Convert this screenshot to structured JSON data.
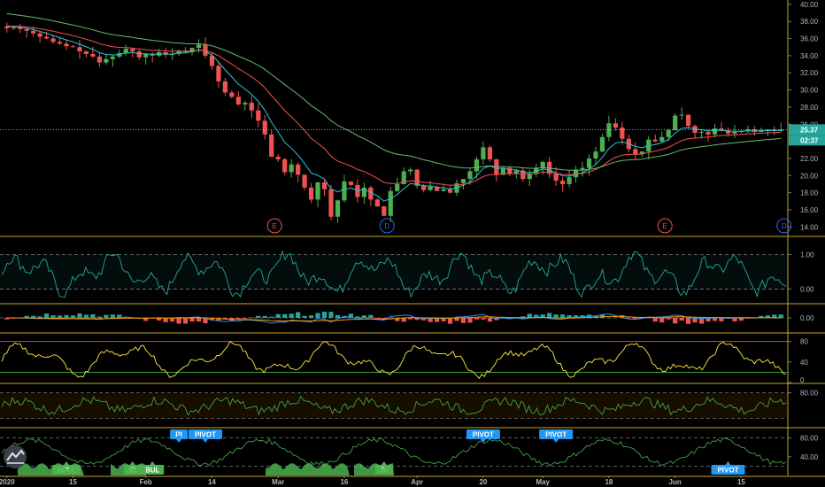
{
  "chart_data": {
    "type": "candlestick",
    "price_axis": {
      "ticks": [
        "40.00",
        "38.00",
        "36.00",
        "34.00",
        "32.00",
        "30.00",
        "28.00",
        "26.00",
        "24.00",
        "22.00",
        "20.00",
        "18.00",
        "16.00",
        "14.00"
      ],
      "range": [
        13,
        40.5
      ]
    },
    "last_price_label": "25.37",
    "countdown_label": "02:37",
    "x_axis": {
      "ticks": [
        {
          "label": "2020",
          "bar": 0
        },
        {
          "label": "15",
          "bar": 10
        },
        {
          "label": "Feb",
          "bar": 21
        },
        {
          "label": "14",
          "bar": 31
        },
        {
          "label": "Mar",
          "bar": 41
        },
        {
          "label": "16",
          "bar": 51
        },
        {
          "label": "Apr",
          "bar": 62
        },
        {
          "label": "20",
          "bar": 72
        },
        {
          "label": "May",
          "bar": 81
        },
        {
          "label": "18",
          "bar": 91
        },
        {
          "label": "Jun",
          "bar": 101
        },
        {
          "label": "15",
          "bar": 111
        }
      ]
    },
    "ohlc_closes": [
      37.2,
      37.3,
      37.1,
      36.9,
      36.6,
      36.2,
      36.0,
      35.6,
      35.4,
      35.1,
      35.0,
      34.5,
      34.2,
      33.9,
      33.2,
      33.6,
      33.9,
      34.3,
      34.8,
      34.5,
      33.8,
      34.2,
      34.0,
      34.4,
      34.1,
      34.2,
      34.6,
      34.4,
      34.9,
      35.3,
      34.0,
      32.8,
      31.0,
      29.7,
      29.2,
      28.3,
      28.5,
      27.6,
      26.4,
      24.8,
      22.2,
      21.9,
      20.4,
      21.3,
      20.1,
      18.6,
      17.2,
      19.2,
      18.4,
      15.2,
      17.1,
      19.3,
      18.9,
      17.5,
      18.6,
      17.2,
      16.4,
      15.3,
      18.2,
      19.0,
      20.5,
      20.7,
      18.8,
      18.3,
      18.7,
      18.2,
      18.4,
      18.0,
      19.1,
      19.6,
      20.5,
      21.9,
      23.3,
      21.9,
      20.1,
      20.9,
      20.2,
      20.6,
      19.6,
      20.2,
      20.9,
      21.6,
      20.2,
      19.4,
      19.0,
      19.8,
      20.7,
      20.9,
      22.0,
      22.8,
      24.5,
      26.1,
      25.6,
      24.3,
      23.1,
      22.5,
      22.8,
      24.2,
      24.0,
      24.5,
      25.3,
      27.0,
      27.1,
      25.8,
      25.0,
      25.1,
      24.8,
      25.5,
      25.3,
      24.9,
      25.1,
      25.2,
      25.4,
      25.1,
      25.3,
      25.37,
      25.2,
      25.37
    ],
    "moving_averages": [
      {
        "color": "#26c6da",
        "period": 20
      },
      {
        "color": "#ef5350",
        "period": 50
      },
      {
        "color": "#66bb6a",
        "period": 100
      }
    ],
    "events": [
      {
        "label": "E",
        "bar": 41,
        "color": "#ef5350"
      },
      {
        "label": "D",
        "bar": 58,
        "color": "#2962ff"
      },
      {
        "label": "E",
        "bar": 100,
        "color": "#ef5350"
      },
      {
        "label": "D",
        "bar": 118,
        "color": "#2962ff"
      }
    ],
    "panes": [
      {
        "name": "oscillator-1",
        "ticks": [
          "1.00",
          "0.00"
        ],
        "line_color": "#26a69a",
        "range": [
          -0.4,
          1.5
        ],
        "levels": [
          1.0,
          0.0
        ]
      },
      {
        "name": "macd",
        "ticks": [
          "0.00"
        ],
        "range": [
          -1,
          1
        ],
        "levels": [
          0.0
        ]
      },
      {
        "name": "rsi",
        "ticks": [
          "80",
          "40",
          "0"
        ],
        "line_color": "#ffeb3b",
        "range": [
          0,
          95
        ],
        "levels": [
          80,
          20
        ]
      },
      {
        "name": "oscillator-2",
        "ticks": [
          "80.00"
        ],
        "line_color": "#43a047",
        "range": [
          0,
          100
        ],
        "levels": [
          80,
          20
        ]
      },
      {
        "name": "pivot-oscillator",
        "ticks": [
          "80.00",
          "40.00"
        ],
        "line_color": "#43a047",
        "range": [
          0,
          100
        ],
        "levels": [
          80,
          20
        ]
      }
    ],
    "badges": [
      {
        "label": "PIVOT",
        "bar": 30,
        "color": "#2196f3",
        "pos": "top"
      },
      {
        "label": "PI",
        "bar": 26,
        "color": "#2196f3",
        "pos": "top"
      },
      {
        "label": "PIVOT",
        "bar": 72,
        "color": "#2196f3",
        "pos": "top"
      },
      {
        "label": "PIVOT",
        "bar": 83,
        "color": "#2196f3",
        "pos": "top"
      },
      {
        "label": "PIVOT",
        "bar": 109,
        "color": "#2196f3",
        "pos": "bottom"
      },
      {
        "label": "BULL",
        "bar": 9,
        "color": "#4caf50",
        "pos": "bottom"
      },
      {
        "label": "BI",
        "bar": 19,
        "color": "#4caf50",
        "pos": "bottom"
      },
      {
        "label": "BUL",
        "bar": 22,
        "color": "#4caf50",
        "pos": "bottom"
      },
      {
        "label": "BI",
        "bar": 57,
        "color": "#4caf50",
        "pos": "bottom"
      }
    ]
  },
  "ui": {
    "logo": "tradingview-logo"
  }
}
